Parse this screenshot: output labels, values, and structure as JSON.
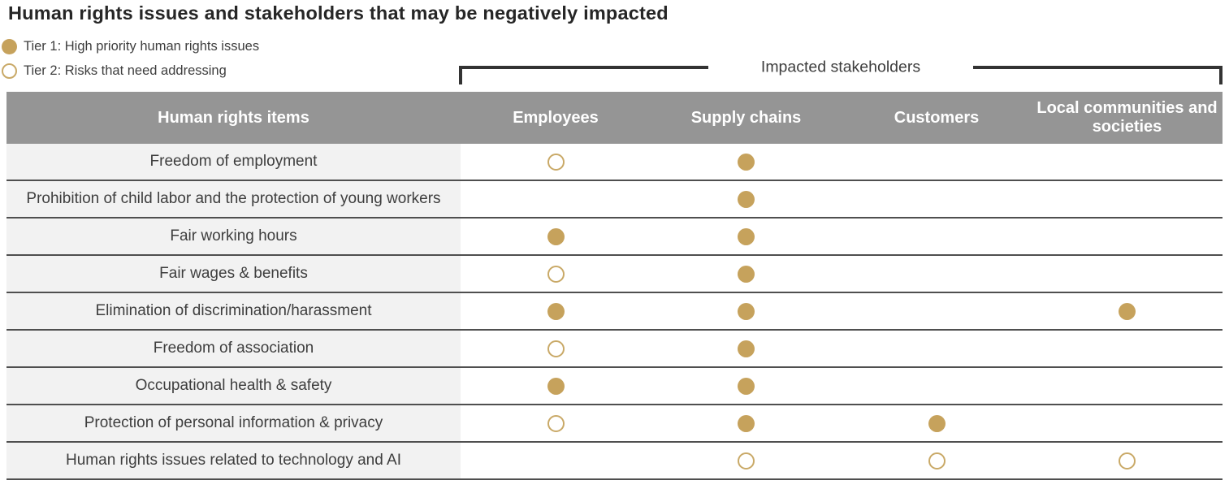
{
  "title": "Human rights issues and stakeholders that may be negatively impacted",
  "bracket_label": "Impacted stakeholders",
  "chart_data": {
    "type": "table",
    "title": "Human rights issues and stakeholders that may be negatively impacted",
    "legend": [
      {
        "symbol": "filled-circle",
        "meaning": "Tier 1: High priority human rights issues"
      },
      {
        "symbol": "open-circle",
        "meaning": "Tier 2: Risks that need addressing"
      }
    ],
    "group_header": "Impacted stakeholders",
    "item_column_header": "Human rights items",
    "stakeholder_columns": [
      "Employees",
      "Supply chains",
      "Customers",
      "Local communities and societies"
    ],
    "rows": [
      {
        "item": "Freedom of employment",
        "marks": [
          "tier2",
          "tier1",
          null,
          null
        ]
      },
      {
        "item": "Prohibition of child labor and the protection of young workers",
        "marks": [
          null,
          "tier1",
          null,
          null
        ]
      },
      {
        "item": "Fair working hours",
        "marks": [
          "tier1",
          "tier1",
          null,
          null
        ]
      },
      {
        "item": "Fair wages & benefits",
        "marks": [
          "tier2",
          "tier1",
          null,
          null
        ]
      },
      {
        "item": "Elimination of discrimination/harassment",
        "marks": [
          "tier1",
          "tier1",
          null,
          "tier1"
        ]
      },
      {
        "item": "Freedom of association",
        "marks": [
          "tier2",
          "tier1",
          null,
          null
        ]
      },
      {
        "item": "Occupational health & safety",
        "marks": [
          "tier1",
          "tier1",
          null,
          null
        ]
      },
      {
        "item": "Protection of personal information & privacy",
        "marks": [
          "tier2",
          "tier1",
          "tier1",
          null
        ]
      },
      {
        "item": "Human rights issues related to technology and AI",
        "marks": [
          null,
          "tier2",
          "tier2",
          "tier2"
        ]
      }
    ]
  },
  "colors": {
    "gold_filled": "#c6a25c",
    "gold_outline": "#c9a967",
    "header_bg": "#959595",
    "item_cell_bg": "#f2f2f2",
    "row_divider": "#4f4f4f",
    "header_text": "#ffffff",
    "body_text": "#3e3e3e",
    "title_text": "#262626",
    "bracket_line": "#333333"
  }
}
